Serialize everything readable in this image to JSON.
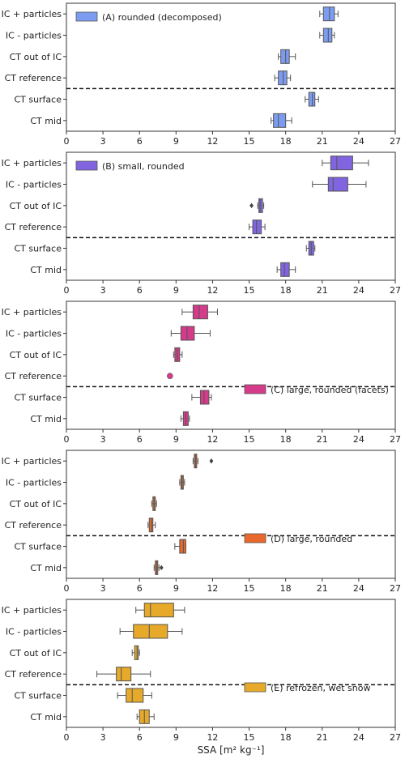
{
  "figure": {
    "xlabel": "SSA [m² kg⁻¹]",
    "x_ticks": [
      "0",
      "3",
      "6",
      "9",
      "12",
      "15",
      "18",
      "21",
      "24",
      "27"
    ]
  },
  "chart_data": [
    {
      "type": "box",
      "legend": "(A) rounded (decomposed)",
      "legend_position": "top-left",
      "color": "#7b9cf0",
      "xlim": [
        0,
        27
      ],
      "categories": [
        "IC + particles",
        "IC - particles",
        "CT out of IC",
        "CT reference",
        "CT surface",
        "CT mid"
      ],
      "divider_after": "CT reference",
      "boxes": [
        {
          "whislo": 20.8,
          "q1": 21.1,
          "med": 21.6,
          "q3": 22.0,
          "whishi": 22.3,
          "fliers": []
        },
        {
          "whislo": 20.8,
          "q1": 21.1,
          "med": 21.5,
          "q3": 21.8,
          "whishi": 22.0,
          "fliers": []
        },
        {
          "whislo": 17.4,
          "q1": 17.6,
          "med": 18.0,
          "q3": 18.3,
          "whishi": 18.8,
          "fliers": []
        },
        {
          "whislo": 17.1,
          "q1": 17.4,
          "med": 17.8,
          "q3": 18.1,
          "whishi": 18.4,
          "fliers": []
        },
        {
          "whislo": 19.6,
          "q1": 19.9,
          "med": 20.2,
          "q3": 20.4,
          "whishi": 20.7,
          "fliers": []
        },
        {
          "whislo": 16.8,
          "q1": 17.0,
          "med": 17.4,
          "q3": 18.0,
          "whishi": 18.5,
          "fliers": []
        }
      ]
    },
    {
      "type": "box",
      "legend": "(B) small, rounded",
      "legend_position": "top-left",
      "color": "#8064e0",
      "xlim": [
        0,
        27
      ],
      "categories": [
        "IC + particles",
        "IC - particles",
        "CT out of IC",
        "CT reference",
        "CT surface",
        "CT mid"
      ],
      "divider_after": "CT reference",
      "boxes": [
        {
          "whislo": 21.0,
          "q1": 21.7,
          "med": 22.2,
          "q3": 23.5,
          "whishi": 24.8,
          "fliers": []
        },
        {
          "whislo": 20.2,
          "q1": 21.5,
          "med": 21.9,
          "q3": 23.1,
          "whishi": 24.6,
          "fliers": []
        },
        {
          "whislo": 15.7,
          "q1": 15.8,
          "med": 15.9,
          "q3": 16.1,
          "whishi": 16.2,
          "fliers": [
            15.2
          ]
        },
        {
          "whislo": 15.0,
          "q1": 15.3,
          "med": 15.6,
          "q3": 16.0,
          "whishi": 16.3,
          "fliers": []
        },
        {
          "whislo": 19.7,
          "q1": 19.9,
          "med": 20.1,
          "q3": 20.3,
          "whishi": 20.4,
          "fliers": []
        },
        {
          "whislo": 17.3,
          "q1": 17.6,
          "med": 17.9,
          "q3": 18.3,
          "whishi": 18.8,
          "fliers": []
        }
      ]
    },
    {
      "type": "box",
      "legend": "(C) large, rounded (facets)",
      "legend_position": "bottom-right",
      "color": "#d43b8a",
      "xlim": [
        0,
        27
      ],
      "categories": [
        "IC + particles",
        "IC - particles",
        "CT out of IC",
        "CT reference",
        "CT surface",
        "CT mid"
      ],
      "divider_after": "CT reference",
      "boxes": [
        {
          "whislo": 9.5,
          "q1": 10.4,
          "med": 10.9,
          "q3": 11.6,
          "whishi": 12.4,
          "fliers": []
        },
        {
          "whislo": 8.6,
          "q1": 9.4,
          "med": 9.9,
          "q3": 10.5,
          "whishi": 11.8,
          "fliers": []
        },
        {
          "whislo": 8.8,
          "q1": 8.9,
          "med": 9.1,
          "q3": 9.3,
          "whishi": 9.5,
          "fliers": []
        },
        {
          "whislo": 8.5,
          "q1": 8.5,
          "med": 8.5,
          "q3": 8.5,
          "whishi": 8.5,
          "fliers": []
        },
        {
          "whislo": 10.3,
          "q1": 11.0,
          "med": 11.3,
          "q3": 11.7,
          "whishi": 11.9,
          "fliers": []
        },
        {
          "whislo": 9.4,
          "q1": 9.6,
          "med": 9.8,
          "q3": 10.0,
          "whishi": 10.1,
          "fliers": []
        }
      ]
    },
    {
      "type": "box",
      "legend": "(D) large, rounded",
      "legend_position": "bottom-right",
      "color": "#e8692b",
      "xlim": [
        0,
        27
      ],
      "categories": [
        "IC + particles",
        "IC - particles",
        "CT out of IC",
        "CT reference",
        "CT surface",
        "CT mid"
      ],
      "divider_after": "CT reference",
      "boxes": [
        {
          "whislo": 10.4,
          "q1": 10.5,
          "med": 10.6,
          "q3": 10.7,
          "whishi": 10.8,
          "fliers": [
            11.9
          ]
        },
        {
          "whislo": 9.3,
          "q1": 9.4,
          "med": 9.5,
          "q3": 9.6,
          "whishi": 9.7,
          "fliers": []
        },
        {
          "whislo": 7.0,
          "q1": 7.1,
          "med": 7.2,
          "q3": 7.3,
          "whishi": 7.4,
          "fliers": []
        },
        {
          "whislo": 6.7,
          "q1": 6.8,
          "med": 7.0,
          "q3": 7.1,
          "whishi": 7.3,
          "fliers": []
        },
        {
          "whislo": 8.9,
          "q1": 9.3,
          "med": 9.6,
          "q3": 9.8,
          "whishi": 9.8,
          "fliers": []
        },
        {
          "whislo": 7.2,
          "q1": 7.3,
          "med": 7.4,
          "q3": 7.5,
          "whishi": 7.6,
          "fliers": [
            7.8
          ]
        }
      ]
    },
    {
      "type": "box",
      "legend": "(E) refrozen, wet snow",
      "legend_position": "bottom-right",
      "color": "#e6a92a",
      "xlim": [
        0,
        27
      ],
      "categories": [
        "IC + particles",
        "IC - particles",
        "CT out of IC",
        "CT reference",
        "CT surface",
        "CT mid"
      ],
      "divider_after": "CT reference",
      "boxes": [
        {
          "whislo": 5.7,
          "q1": 6.4,
          "med": 6.9,
          "q3": 8.8,
          "whishi": 9.7,
          "fliers": []
        },
        {
          "whislo": 4.4,
          "q1": 5.5,
          "med": 6.8,
          "q3": 8.3,
          "whishi": 9.5,
          "fliers": []
        },
        {
          "whislo": 5.4,
          "q1": 5.6,
          "med": 5.8,
          "q3": 5.9,
          "whishi": 6.0,
          "fliers": []
        },
        {
          "whislo": 2.5,
          "q1": 4.1,
          "med": 4.5,
          "q3": 5.3,
          "whishi": 6.9,
          "fliers": []
        },
        {
          "whislo": 4.2,
          "q1": 4.9,
          "med": 5.4,
          "q3": 6.3,
          "whishi": 7.0,
          "fliers": []
        },
        {
          "whislo": 5.8,
          "q1": 6.0,
          "med": 6.4,
          "q3": 6.8,
          "whishi": 7.2,
          "fliers": []
        }
      ]
    }
  ]
}
